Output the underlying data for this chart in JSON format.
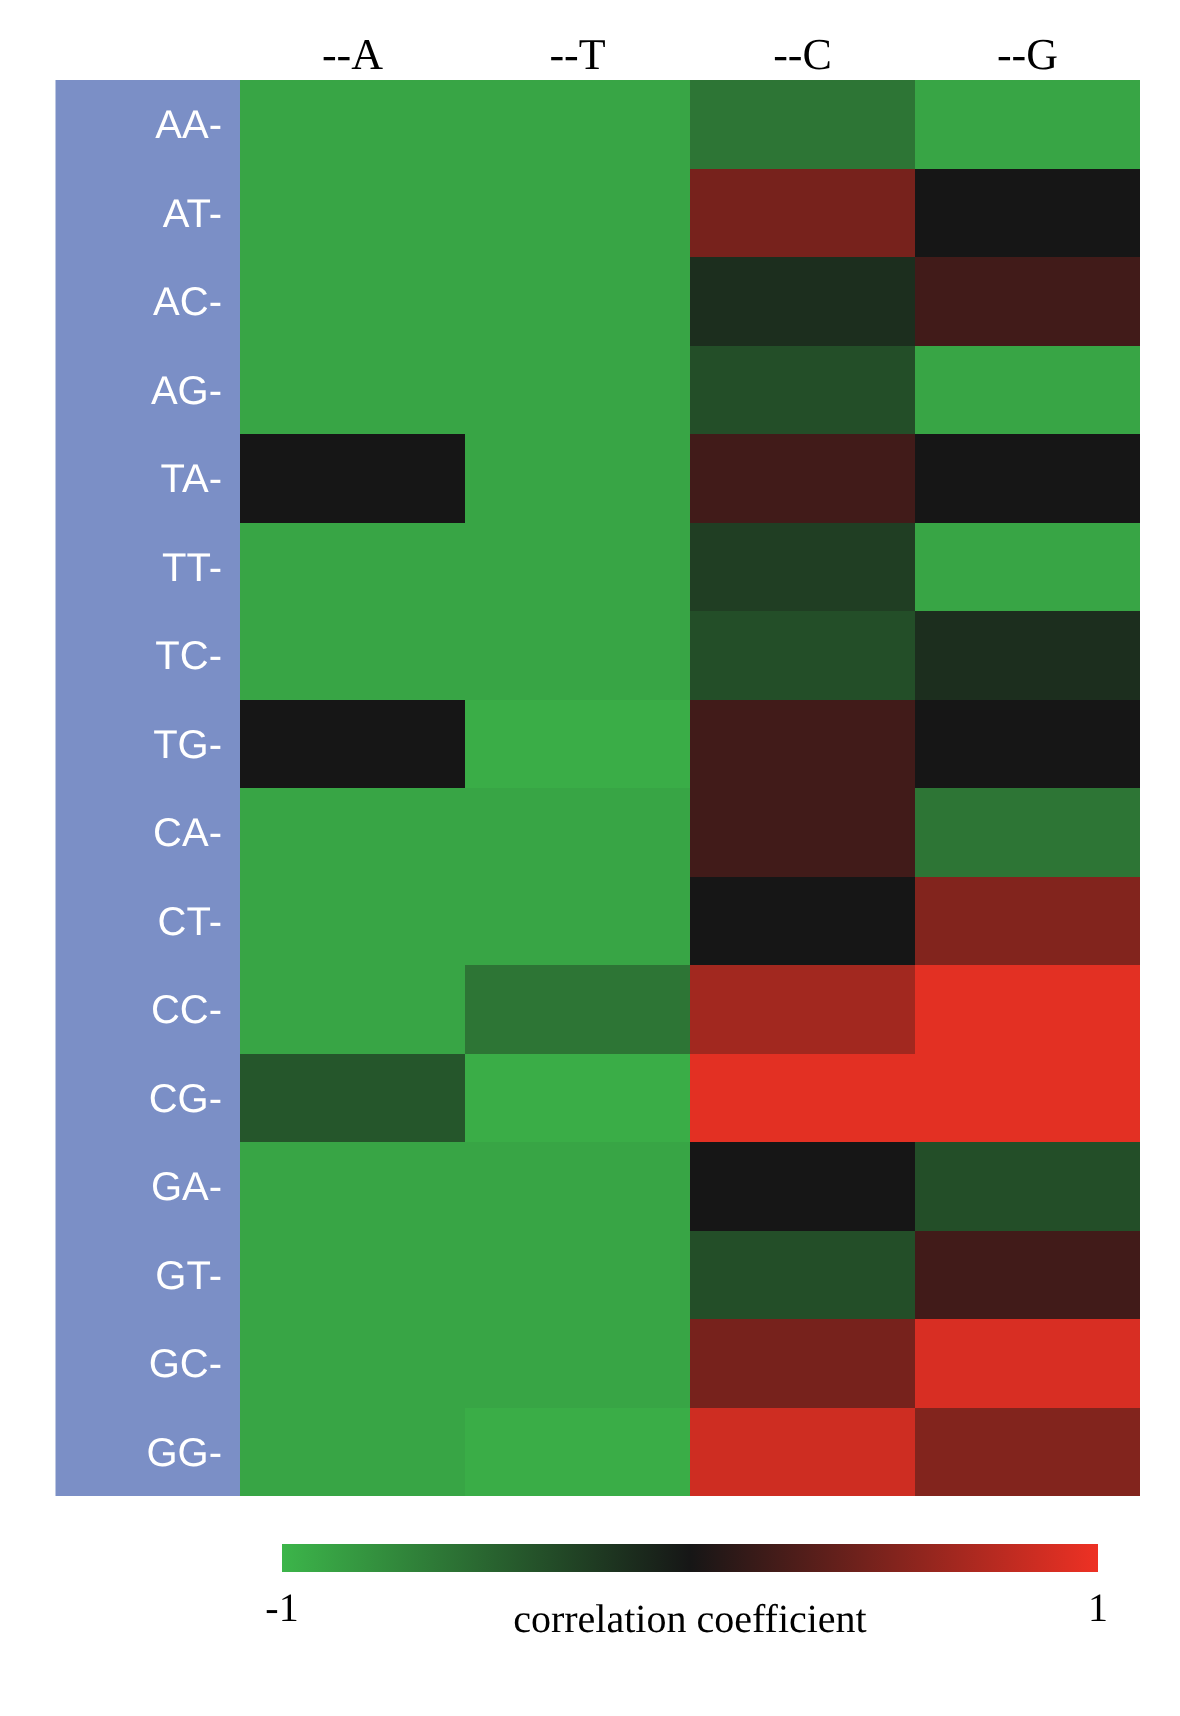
{
  "chart_data": {
    "type": "heatmap",
    "clabel": "correlation coefficient",
    "categories": [
      "--A",
      "--T",
      "--C",
      "--G"
    ],
    "y_categories": [
      "AA-",
      "AT-",
      "AC-",
      "AG-",
      "TA-",
      "TT-",
      "TC-",
      "TG-",
      "CA-",
      "CT-",
      "CC-",
      "CG-",
      "GA-",
      "GT-",
      "GC-",
      "GG-"
    ],
    "cells": [
      [
        -0.9,
        -0.9,
        -0.6,
        -0.9
      ],
      [
        -0.9,
        -0.9,
        0.45,
        0.0
      ],
      [
        -0.9,
        -0.9,
        -0.15,
        0.2
      ],
      [
        -0.9,
        -0.9,
        -0.35,
        -0.9
      ],
      [
        0.0,
        -0.9,
        0.2,
        0.0
      ],
      [
        -0.9,
        -0.9,
        -0.25,
        -0.9
      ],
      [
        -0.9,
        -0.9,
        -0.35,
        -0.15
      ],
      [
        0.0,
        -0.95,
        0.2,
        0.0
      ],
      [
        -0.9,
        -0.9,
        0.2,
        -0.6
      ],
      [
        -0.9,
        -0.9,
        0.0,
        0.5
      ],
      [
        -0.9,
        -0.6,
        0.65,
        0.95
      ],
      [
        -0.4,
        -0.95,
        0.95,
        0.95
      ],
      [
        -0.9,
        -0.9,
        0.0,
        -0.35
      ],
      [
        -0.9,
        -0.9,
        -0.35,
        0.2
      ],
      [
        -0.9,
        -0.9,
        0.45,
        0.9
      ],
      [
        -0.9,
        -0.95,
        0.85,
        0.5
      ]
    ],
    "clim": [
      -1,
      1
    ],
    "cticks": [
      -1,
      1
    ]
  }
}
